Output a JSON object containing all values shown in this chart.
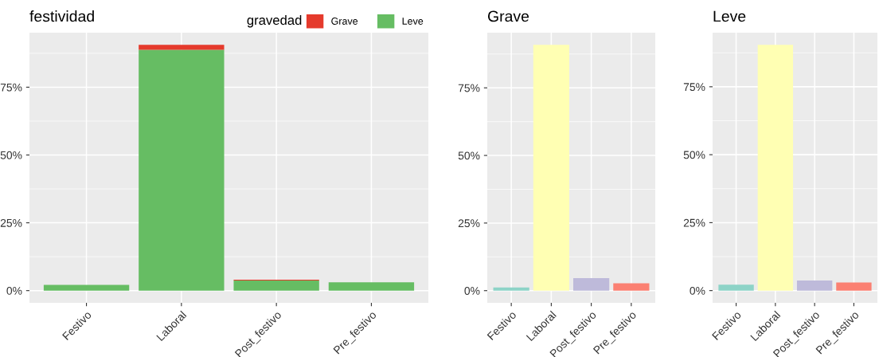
{
  "chart_data": [
    {
      "type": "bar",
      "title": "festividad",
      "legend_title": "gravedad",
      "categories": [
        "Festivo",
        "Laboral",
        "Post_festivo",
        "Pre_festivo"
      ],
      "stacked": true,
      "legend": "top right",
      "grid": true,
      "series": [
        {
          "name": "Leve",
          "color": "#66bd63",
          "values": [
            2.1,
            88.8,
            3.7,
            3.1
          ]
        },
        {
          "name": "Grave",
          "color": "#e53a2c",
          "values": [
            null,
            1.8,
            0.3,
            null
          ]
        }
      ],
      "ylim": [
        -4.5,
        95.1
      ],
      "yticks": [
        {
          "value": 0,
          "label": "0%"
        },
        {
          "value": 25,
          "label": "25%"
        },
        {
          "value": 50,
          "label": "50%"
        },
        {
          "value": 75,
          "label": "75%"
        }
      ]
    },
    {
      "type": "bar",
      "title": "Grave",
      "categories": [
        "Festivo",
        "Laboral",
        "Post_festivo",
        "Pre_festivo"
      ],
      "grid": true,
      "values": [
        1.2,
        90.9,
        4.6,
        2.7
      ],
      "colors": [
        "#8dd3c7",
        "#ffffb3",
        "#bebada",
        "#fb8072"
      ],
      "ylim": [
        -4.5,
        95.4
      ],
      "yticks": [
        {
          "value": 0,
          "label": "0%"
        },
        {
          "value": 25,
          "label": "25%"
        },
        {
          "value": 50,
          "label": "50%"
        },
        {
          "value": 75,
          "label": "75%"
        }
      ]
    },
    {
      "type": "bar",
      "title": "Leve",
      "categories": [
        "Festivo",
        "Laboral",
        "Post_festivo",
        "Pre_festivo"
      ],
      "grid": true,
      "values": [
        2.2,
        90.4,
        3.7,
        3.0
      ],
      "colors": [
        "#8dd3c7",
        "#ffffb3",
        "#bebada",
        "#fb8072"
      ],
      "ylim": [
        -4.5,
        94.9
      ],
      "yticks": [
        {
          "value": 0,
          "label": "0%"
        },
        {
          "value": 25,
          "label": "25%"
        },
        {
          "value": 50,
          "label": "50%"
        },
        {
          "value": 75,
          "label": "75%"
        }
      ]
    }
  ]
}
